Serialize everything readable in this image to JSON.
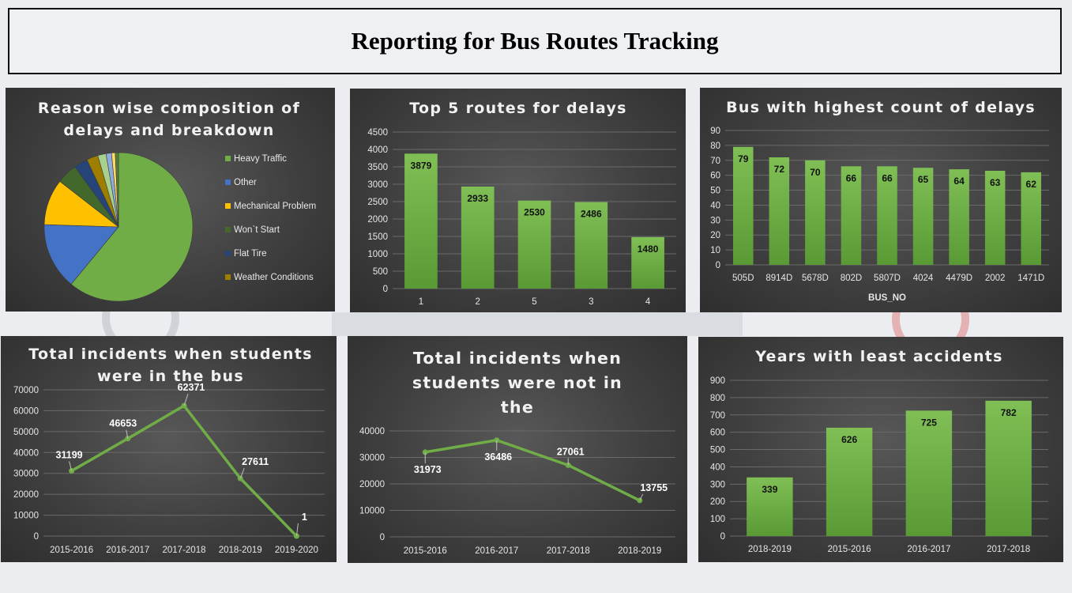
{
  "header": {
    "title": "Reporting for Bus Routes Tracking"
  },
  "colors": {
    "bar": "#70ad47",
    "barDark": "#5a9a35",
    "panelBg": "#3d3d3d"
  },
  "chart_data": [
    {
      "id": "pie",
      "type": "pie",
      "title": "Reason wise composition of delays and breakdown",
      "legend_position": "right",
      "legend": [
        "Heavy Traffic",
        "Other",
        "Mechanical Problem",
        "Won`t Start",
        "Flat Tire",
        "Weather Conditions"
      ],
      "slices": [
        {
          "name": "Heavy Traffic",
          "value": 61.0,
          "color": "#70ad47"
        },
        {
          "name": "Other",
          "value": 14.5,
          "color": "#4472c4"
        },
        {
          "name": "Mechanical Problem",
          "value": 10.0,
          "color": "#ffc000"
        },
        {
          "name": "Won`t Start",
          "value": 4.5,
          "color": "#43682b"
        },
        {
          "name": "Flat Tire",
          "value": 3.0,
          "color": "#264478"
        },
        {
          "name": "Weather Conditions",
          "value": 2.5,
          "color": "#9e7e00"
        },
        {
          "name": "",
          "value": 1.8,
          "color": "#a9d18e"
        },
        {
          "name": "",
          "value": 1.2,
          "color": "#8faadc"
        },
        {
          "name": "",
          "value": 0.8,
          "color": "#ffd966"
        },
        {
          "name": "",
          "value": 0.7,
          "color": "#548235"
        }
      ]
    },
    {
      "id": "routes",
      "type": "bar",
      "title": "Top 5 routes for delays",
      "categories": [
        "1",
        "2",
        "5",
        "3",
        "4"
      ],
      "values": [
        3879,
        2933,
        2530,
        2486,
        1480
      ],
      "ylim": [
        0,
        4500
      ],
      "yticks": [
        0,
        500,
        1000,
        1500,
        2000,
        2500,
        3000,
        3500,
        4000,
        4500
      ],
      "grid": true
    },
    {
      "id": "bus",
      "type": "bar",
      "title": "Bus with highest count of delays",
      "categories": [
        "505D",
        "8914D",
        "5678D",
        "802D",
        "5807D",
        "4024",
        "4479D",
        "2002",
        "1471D"
      ],
      "values": [
        79,
        72,
        70,
        66,
        66,
        65,
        64,
        63,
        62
      ],
      "xlabel": "BUS_NO",
      "ylim": [
        0,
        90
      ],
      "yticks": [
        0,
        10,
        20,
        30,
        40,
        50,
        60,
        70,
        80,
        90
      ],
      "grid": true
    },
    {
      "id": "instudents",
      "type": "line",
      "title": "Total incidents when students were in the bus",
      "categories": [
        "2015-2016",
        "2016-2017",
        "2017-2018",
        "2018-2019",
        "2019-2020"
      ],
      "values": [
        31199,
        46653,
        62371,
        27611,
        1
      ],
      "ylim": [
        0,
        70000
      ],
      "yticks": [
        0,
        10000,
        20000,
        30000,
        40000,
        50000,
        60000,
        70000
      ],
      "grid": true
    },
    {
      "id": "notstudents",
      "type": "line",
      "title": "Total incidents when students were not in the bus",
      "categories": [
        "2015-2016",
        "2016-2017",
        "2017-2018",
        "2018-2019"
      ],
      "values": [
        31973,
        36486,
        27061,
        13755
      ],
      "ylim": [
        0,
        40000
      ],
      "yticks": [
        0,
        10000,
        20000,
        30000,
        40000
      ],
      "grid": true
    },
    {
      "id": "years",
      "type": "bar",
      "title": "Years with least accidents",
      "categories": [
        "2018-2019",
        "2015-2016",
        "2016-2017",
        "2017-2018"
      ],
      "values": [
        339,
        626,
        725,
        782
      ],
      "ylim": [
        0,
        900
      ],
      "yticks": [
        0,
        100,
        200,
        300,
        400,
        500,
        600,
        700,
        800,
        900
      ],
      "grid": true
    }
  ]
}
